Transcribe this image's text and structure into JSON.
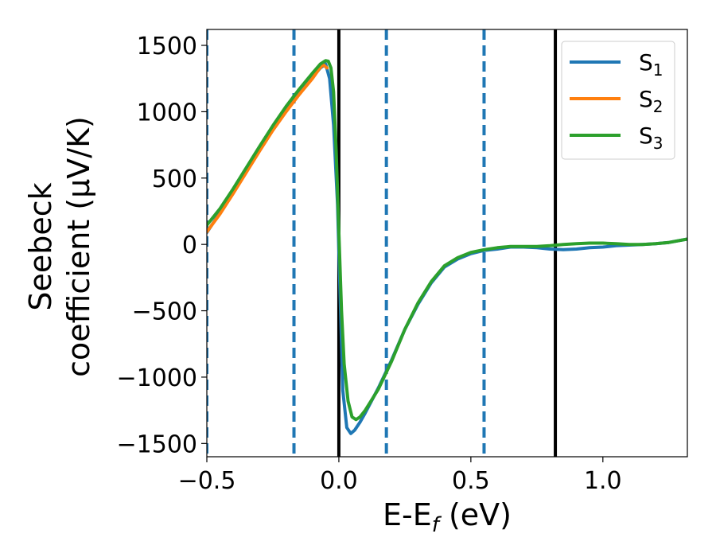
{
  "chart_data": {
    "type": "line",
    "xlabel": "E-E",
    "xlabel_sub": "f",
    "xlabel_unit": " (eV)",
    "ylabel_line1": "Seebeck",
    "ylabel_line2": "coefficient  (μV/K)",
    "xlim": [
      -0.5,
      1.32
    ],
    "ylim": [
      -1600,
      1620
    ],
    "xticks": [
      -0.5,
      0.0,
      0.5,
      1.0
    ],
    "xtick_labels": [
      "−0.5",
      "0.0",
      "0.5",
      "1.0"
    ],
    "yticks": [
      1500,
      1000,
      500,
      0,
      -500,
      -1000,
      -1500
    ],
    "ytick_labels": [
      "1500",
      "1000",
      "500",
      "0",
      "−500",
      "−1000",
      "−1500"
    ],
    "legend_position": "top-right",
    "vlines_dashed": [
      -0.5,
      -0.17,
      0.18,
      0.55
    ],
    "vlines_solid": [
      0.0,
      0.82
    ],
    "series": [
      {
        "name": "S",
        "subscript": "1",
        "color": "#1f77b4",
        "points": [
          [
            -0.5,
            90
          ],
          [
            -0.45,
            240
          ],
          [
            -0.4,
            400
          ],
          [
            -0.35,
            560
          ],
          [
            -0.3,
            720
          ],
          [
            -0.25,
            870
          ],
          [
            -0.2,
            1010
          ],
          [
            -0.15,
            1140
          ],
          [
            -0.1,
            1260
          ],
          [
            -0.07,
            1330
          ],
          [
            -0.05,
            1360
          ],
          [
            -0.035,
            1250
          ],
          [
            -0.02,
            900
          ],
          [
            -0.005,
            300
          ],
          [
            0.005,
            -400
          ],
          [
            0.015,
            -1100
          ],
          [
            0.03,
            -1380
          ],
          [
            0.045,
            -1425
          ],
          [
            0.06,
            -1400
          ],
          [
            0.08,
            -1340
          ],
          [
            0.1,
            -1270
          ],
          [
            0.15,
            -1080
          ],
          [
            0.2,
            -870
          ],
          [
            0.25,
            -640
          ],
          [
            0.3,
            -450
          ],
          [
            0.35,
            -290
          ],
          [
            0.4,
            -170
          ],
          [
            0.45,
            -110
          ],
          [
            0.5,
            -70
          ],
          [
            0.55,
            -45
          ],
          [
            0.6,
            -35
          ],
          [
            0.65,
            -20
          ],
          [
            0.7,
            -20
          ],
          [
            0.75,
            -25
          ],
          [
            0.8,
            -35
          ],
          [
            0.85,
            -40
          ],
          [
            0.9,
            -35
          ],
          [
            0.95,
            -25
          ],
          [
            1.0,
            -20
          ],
          [
            1.05,
            -10
          ],
          [
            1.1,
            -5
          ],
          [
            1.15,
            0
          ],
          [
            1.2,
            5
          ],
          [
            1.25,
            15
          ],
          [
            1.32,
            40
          ]
        ]
      },
      {
        "name": "S",
        "subscript": "2",
        "color": "#ff7f0e",
        "points": [
          [
            -0.5,
            95
          ],
          [
            -0.45,
            230
          ],
          [
            -0.4,
            385
          ],
          [
            -0.35,
            545
          ],
          [
            -0.3,
            705
          ],
          [
            -0.25,
            860
          ],
          [
            -0.2,
            1000
          ],
          [
            -0.15,
            1130
          ],
          [
            -0.1,
            1250
          ],
          [
            -0.075,
            1320
          ],
          [
            -0.06,
            1355
          ],
          [
            -0.045,
            1330
          ]
        ]
      },
      {
        "name": "S",
        "subscript": "3",
        "color": "#2ca02c",
        "points": [
          [
            -0.5,
            145
          ],
          [
            -0.45,
            270
          ],
          [
            -0.4,
            420
          ],
          [
            -0.35,
            580
          ],
          [
            -0.3,
            740
          ],
          [
            -0.25,
            895
          ],
          [
            -0.2,
            1040
          ],
          [
            -0.15,
            1170
          ],
          [
            -0.1,
            1290
          ],
          [
            -0.07,
            1360
          ],
          [
            -0.05,
            1385
          ],
          [
            -0.04,
            1380
          ],
          [
            -0.03,
            1330
          ],
          [
            -0.02,
            1150
          ],
          [
            -0.01,
            700
          ],
          [
            0.0,
            100
          ],
          [
            0.01,
            -500
          ],
          [
            0.02,
            -900
          ],
          [
            0.035,
            -1180
          ],
          [
            0.05,
            -1300
          ],
          [
            0.065,
            -1320
          ],
          [
            0.08,
            -1300
          ],
          [
            0.1,
            -1250
          ],
          [
            0.15,
            -1090
          ],
          [
            0.2,
            -880
          ],
          [
            0.25,
            -640
          ],
          [
            0.3,
            -440
          ],
          [
            0.35,
            -280
          ],
          [
            0.4,
            -160
          ],
          [
            0.45,
            -100
          ],
          [
            0.5,
            -60
          ],
          [
            0.55,
            -40
          ],
          [
            0.6,
            -25
          ],
          [
            0.65,
            -15
          ],
          [
            0.7,
            -15
          ],
          [
            0.75,
            -15
          ],
          [
            0.8,
            -10
          ],
          [
            0.85,
            0
          ],
          [
            0.9,
            5
          ],
          [
            0.95,
            10
          ],
          [
            1.0,
            10
          ],
          [
            1.05,
            5
          ],
          [
            1.1,
            0
          ],
          [
            1.15,
            0
          ],
          [
            1.2,
            5
          ],
          [
            1.25,
            15
          ],
          [
            1.32,
            40
          ]
        ]
      }
    ]
  }
}
